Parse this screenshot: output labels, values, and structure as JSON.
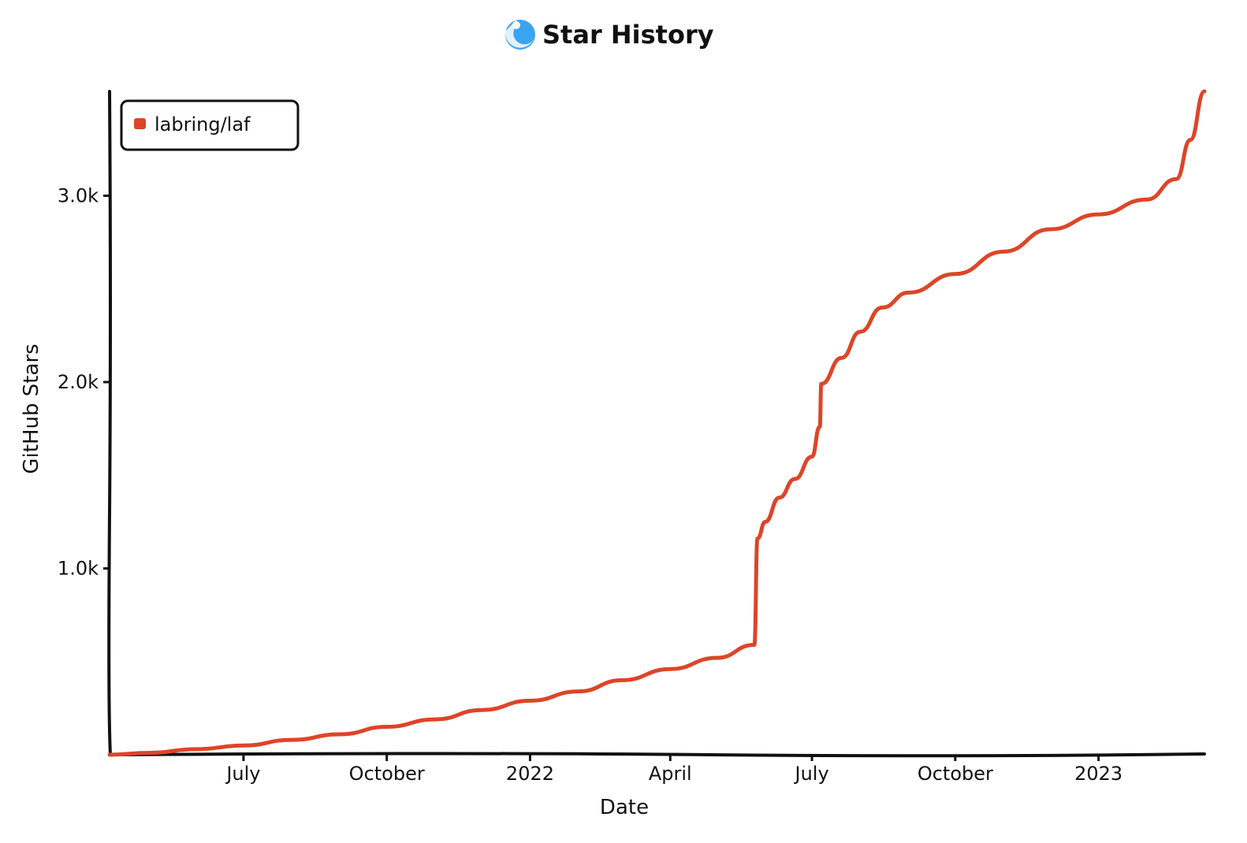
{
  "chart_data": {
    "type": "line",
    "title": "Star History",
    "xlabel": "Date",
    "ylabel": "GitHub Stars",
    "x_start": "2021-04-06",
    "x_end": "2023-03-10",
    "x_ticks": [
      {
        "date": "2021-07-01",
        "label": "July"
      },
      {
        "date": "2021-10-01",
        "label": "October"
      },
      {
        "date": "2022-01-01",
        "label": "2022"
      },
      {
        "date": "2022-04-01",
        "label": "April"
      },
      {
        "date": "2022-07-01",
        "label": "July"
      },
      {
        "date": "2022-10-01",
        "label": "October"
      },
      {
        "date": "2023-01-01",
        "label": "2023"
      }
    ],
    "ylim": [
      0,
      3560
    ],
    "y_ticks": [
      {
        "value": 1000,
        "label": "1.0k"
      },
      {
        "value": 2000,
        "label": "2.0k"
      },
      {
        "value": 3000,
        "label": "3.0k"
      }
    ],
    "grid": false,
    "legend": "top-left",
    "series": [
      {
        "name": "labring/laf",
        "color": "#dd4528",
        "x": [
          "2021-04-06",
          "2021-05-01",
          "2021-06-01",
          "2021-07-01",
          "2021-08-01",
          "2021-09-01",
          "2021-10-01",
          "2021-11-01",
          "2021-12-01",
          "2022-01-01",
          "2022-02-01",
          "2022-03-01",
          "2022-04-01",
          "2022-05-01",
          "2022-05-25",
          "2022-05-27",
          "2022-06-01",
          "2022-06-10",
          "2022-06-20",
          "2022-07-01",
          "2022-07-06",
          "2022-07-07",
          "2022-07-20",
          "2022-08-01",
          "2022-08-15",
          "2022-09-01",
          "2022-10-01",
          "2022-11-01",
          "2022-12-01",
          "2023-01-01",
          "2023-02-01",
          "2023-02-20",
          "2023-03-01",
          "2023-03-10"
        ],
        "y": [
          0,
          10,
          30,
          50,
          80,
          110,
          150,
          190,
          240,
          290,
          340,
          400,
          460,
          520,
          590,
          1160,
          1250,
          1380,
          1480,
          1600,
          1760,
          1990,
          2130,
          2270,
          2400,
          2480,
          2580,
          2700,
          2820,
          2900,
          2980,
          3090,
          3300,
          3560
        ]
      }
    ]
  }
}
